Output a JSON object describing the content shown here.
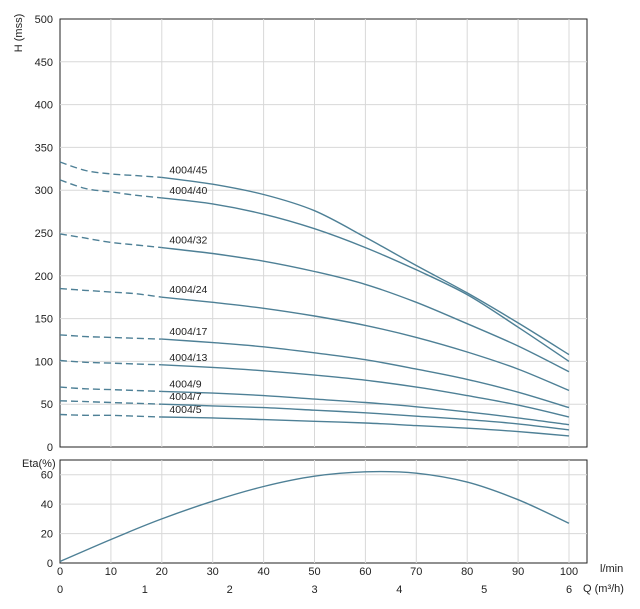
{
  "chart_data": [
    {
      "type": "line",
      "ylabel": "H (mss)",
      "xlabel_flow": "l/min",
      "xlabel_q": "Q (m³/h)",
      "xlim": [
        0,
        100
      ],
      "ylim": [
        0,
        500
      ],
      "yticks": [
        "0",
        "50",
        "100",
        "150",
        "200",
        "250",
        "300",
        "350",
        "400",
        "450",
        "500"
      ],
      "grid": true,
      "dashed_until_x": 20,
      "series": [
        {
          "name": "4004/45",
          "x": [
            0,
            5,
            10,
            15,
            20,
            30,
            40,
            50,
            60,
            70,
            80,
            90,
            100
          ],
          "y": [
            333,
            323,
            319,
            317,
            315,
            307,
            295,
            276,
            245,
            212,
            180,
            145,
            108
          ]
        },
        {
          "name": "4004/40",
          "x": [
            0,
            5,
            10,
            15,
            20,
            30,
            40,
            50,
            60,
            70,
            80,
            90,
            100
          ],
          "y": [
            312,
            302,
            298,
            294,
            291,
            284,
            272,
            255,
            233,
            207,
            178,
            140,
            100
          ]
        },
        {
          "name": "4004/32",
          "x": [
            0,
            5,
            10,
            15,
            20,
            30,
            40,
            50,
            60,
            70,
            80,
            90,
            100
          ],
          "y": [
            249,
            244,
            239,
            236,
            233,
            226,
            217,
            205,
            190,
            169,
            144,
            118,
            88
          ]
        },
        {
          "name": "4004/24",
          "x": [
            0,
            5,
            10,
            15,
            20,
            30,
            40,
            50,
            60,
            70,
            80,
            90,
            100
          ],
          "y": [
            185,
            183,
            181,
            179,
            175,
            169,
            162,
            153,
            142,
            128,
            111,
            91,
            66
          ]
        },
        {
          "name": "4004/17",
          "x": [
            0,
            5,
            10,
            15,
            20,
            30,
            40,
            50,
            60,
            70,
            80,
            90,
            100
          ],
          "y": [
            131,
            129,
            128,
            127,
            126,
            122,
            117,
            110,
            102,
            91,
            79,
            64,
            46
          ]
        },
        {
          "name": "4004/13",
          "x": [
            0,
            5,
            10,
            15,
            20,
            30,
            40,
            50,
            60,
            70,
            80,
            90,
            100
          ],
          "y": [
            101,
            99,
            98,
            97,
            96,
            93,
            89,
            84,
            78,
            70,
            60,
            49,
            35
          ]
        },
        {
          "name": "4004/9",
          "x": [
            0,
            5,
            10,
            15,
            20,
            30,
            40,
            50,
            60,
            70,
            80,
            90,
            100
          ],
          "y": [
            70,
            68,
            67,
            66,
            65,
            63,
            60,
            56,
            52,
            47,
            41,
            34,
            26
          ]
        },
        {
          "name": "4004/7",
          "x": [
            0,
            5,
            10,
            15,
            20,
            30,
            40,
            50,
            60,
            70,
            80,
            90,
            100
          ],
          "y": [
            54,
            53,
            52,
            51,
            50,
            48,
            46,
            43,
            40,
            36,
            32,
            27,
            20
          ]
        },
        {
          "name": "4004/5",
          "x": [
            0,
            5,
            10,
            15,
            20,
            30,
            40,
            50,
            60,
            70,
            80,
            90,
            100
          ],
          "y": [
            38,
            37,
            37,
            36,
            35,
            34,
            32,
            30,
            28,
            25,
            22,
            18,
            13
          ]
        }
      ]
    },
    {
      "type": "line",
      "ylabel": "Eta(%)",
      "xlabel_flow": "l/min",
      "xlabel_q": "Q (m³/h)",
      "xlim": [
        0,
        100
      ],
      "ylim": [
        0,
        70
      ],
      "yticks": [
        "0",
        "20",
        "40",
        "60"
      ],
      "xticks_flow": [
        "0",
        "10",
        "20",
        "30",
        "40",
        "50",
        "60",
        "70",
        "80",
        "90",
        "100"
      ],
      "xticks_q": [
        "0",
        "1",
        "2",
        "3",
        "4",
        "5",
        "6"
      ],
      "grid": true,
      "series": [
        {
          "x": [
            0,
            10,
            20,
            30,
            40,
            50,
            60,
            70,
            80,
            90,
            100
          ],
          "y": [
            1,
            16,
            30,
            42,
            52,
            59,
            62,
            61,
            55,
            43,
            27
          ]
        }
      ]
    }
  ]
}
